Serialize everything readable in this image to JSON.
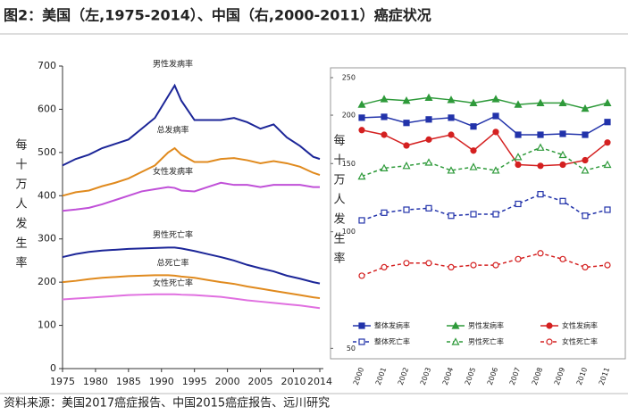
{
  "title": "图2：美国（左,1975-2014）、中国（右,2000-2011）癌症状况",
  "source": "资料来源：美国2017癌症报告、中国2015癌症报告、远川研究",
  "chart_data": [
    {
      "type": "line",
      "y_label": "每十万人发生率",
      "x": [
        1975,
        1977,
        1979,
        1981,
        1983,
        1985,
        1987,
        1989,
        1991,
        1992,
        1993,
        1995,
        1997,
        1999,
        2001,
        2003,
        2005,
        2007,
        2009,
        2011,
        2013,
        2014
      ],
      "xlim": [
        1975,
        2014
      ],
      "xticks": [
        1975,
        1980,
        1985,
        1990,
        1995,
        2000,
        2005,
        2010,
        2014
      ],
      "ylim": [
        0,
        700
      ],
      "yticks": [
        0,
        100,
        200,
        300,
        400,
        500,
        600,
        700
      ],
      "series": [
        {
          "name": "男性发病率",
          "color": "#1c2698",
          "values": [
            470,
            485,
            495,
            510,
            520,
            530,
            555,
            580,
            630,
            655,
            620,
            575,
            575,
            575,
            580,
            570,
            555,
            565,
            535,
            515,
            490,
            485
          ]
        },
        {
          "name": "总发病率",
          "color": "#e08a1e",
          "values": [
            400,
            408,
            412,
            422,
            430,
            440,
            455,
            470,
            500,
            510,
            495,
            478,
            478,
            485,
            487,
            482,
            475,
            480,
            475,
            467,
            453,
            448
          ]
        },
        {
          "name": "女性发病率",
          "color": "#c050d8",
          "values": [
            365,
            368,
            372,
            380,
            390,
            400,
            410,
            415,
            420,
            418,
            412,
            410,
            420,
            430,
            425,
            425,
            420,
            425,
            425,
            425,
            420,
            420
          ]
        },
        {
          "name": "男性死亡率",
          "color": "#1c2698",
          "values": [
            258,
            265,
            270,
            273,
            275,
            277,
            278,
            279,
            280,
            280,
            278,
            272,
            265,
            258,
            250,
            240,
            232,
            225,
            215,
            208,
            200,
            197
          ]
        },
        {
          "name": "总死亡率",
          "color": "#e08a1e",
          "values": [
            200,
            203,
            207,
            210,
            212,
            214,
            215,
            216,
            216,
            215,
            213,
            210,
            205,
            200,
            196,
            190,
            185,
            180,
            175,
            170,
            165,
            163
          ]
        },
        {
          "name": "女性死亡率",
          "color": "#e070e0",
          "values": [
            160,
            162,
            164,
            166,
            168,
            170,
            171,
            172,
            172,
            172,
            171,
            170,
            168,
            166,
            162,
            158,
            155,
            152,
            149,
            146,
            142,
            140
          ]
        }
      ]
    },
    {
      "type": "line",
      "y_label": "每十万人发生率",
      "log_scale": true,
      "categories": [
        "2000",
        "2001",
        "2002",
        "2003",
        "2004",
        "2005",
        "2006",
        "2007",
        "2008",
        "2009",
        "2010",
        "2011"
      ],
      "ylim": [
        47,
        265
      ],
      "yticks": [
        50,
        100,
        150,
        200,
        250
      ],
      "series": [
        {
          "name": "整体发病率",
          "color": "#2233aa",
          "line_style": "solid",
          "marker": "square",
          "marker_fill": "solid",
          "values": [
            197,
            198,
            191,
            195,
            197,
            187,
            199,
            178,
            178,
            179,
            178,
            192
          ]
        },
        {
          "name": "男性发病率",
          "color": "#2e9a3a",
          "line_style": "solid",
          "marker": "triangle",
          "marker_fill": "solid",
          "values": [
            213,
            220,
            218,
            222,
            219,
            215,
            220,
            213,
            215,
            215,
            208,
            215
          ]
        },
        {
          "name": "女性发病率",
          "color": "#d42020",
          "line_style": "solid",
          "marker": "circle",
          "marker_fill": "solid",
          "values": [
            183,
            178,
            167,
            173,
            178,
            162,
            181,
            149,
            148,
            149,
            153,
            170
          ]
        },
        {
          "name": "整体死亡率",
          "color": "#2233aa",
          "line_style": "dashed",
          "marker": "square",
          "marker_fill": "open",
          "values": [
            107,
            112,
            114,
            115,
            110,
            111,
            111,
            118,
            125,
            120,
            110,
            114
          ]
        },
        {
          "name": "男性死亡率",
          "color": "#2e9a3a",
          "line_style": "dashed",
          "marker": "triangle",
          "marker_fill": "open",
          "values": [
            139,
            146,
            148,
            151,
            144,
            147,
            144,
            156,
            165,
            158,
            144,
            149
          ]
        },
        {
          "name": "女性死亡率",
          "color": "#d42020",
          "line_style": "dashed",
          "marker": "circle",
          "marker_fill": "open",
          "values": [
            77,
            81,
            83,
            83,
            81,
            82,
            82,
            85,
            88,
            85,
            81,
            82
          ]
        }
      ]
    }
  ]
}
